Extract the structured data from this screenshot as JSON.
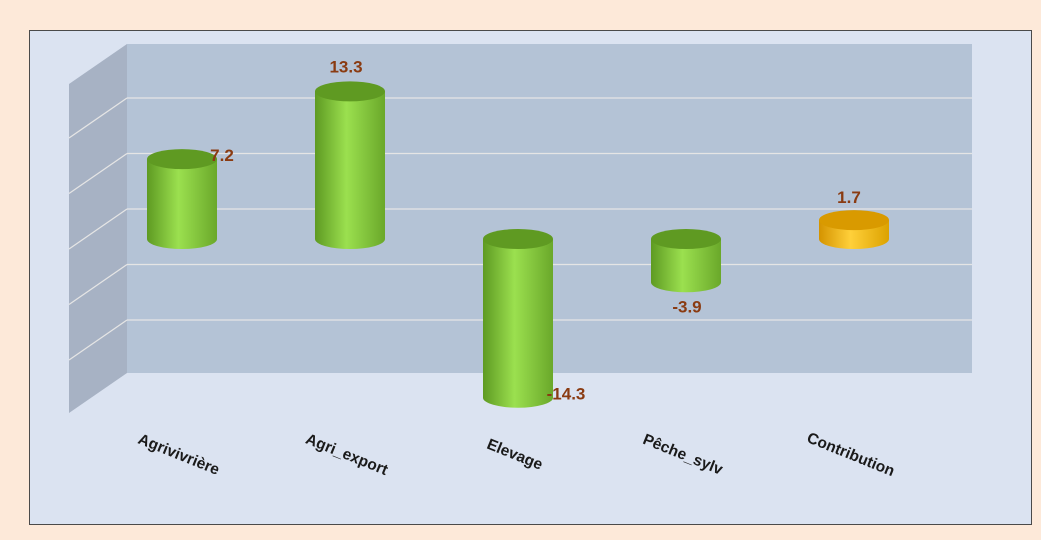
{
  "chart_data": {
    "type": "bar",
    "style": "3d-cylinder",
    "categories": [
      "Agrivivrière",
      "Agri_export",
      "Elevage",
      "Pêche_sylv",
      "Contribution"
    ],
    "values": [
      7.2,
      13.3,
      -14.3,
      -3.9,
      1.7
    ],
    "value_labels": [
      "7.2",
      "13.3",
      "-14.3",
      "-3.9",
      "1.7"
    ],
    "highlight_index": 4,
    "ylim": [
      -20,
      15
    ],
    "grid": true,
    "title": "",
    "xlabel": "",
    "ylabel": "",
    "colors": {
      "bar": "#92d050",
      "bar_dark": "#5f9a22",
      "highlight": "#ffc000",
      "highlight_dark": "#d99a00",
      "label": "#8a3b12",
      "back_wall": "#b4c3d6",
      "side_wall": "#a7b2c4",
      "grid": "#e5e5e5",
      "frame_background": "#dbe3f1",
      "page_background": "#fde9d9"
    }
  }
}
